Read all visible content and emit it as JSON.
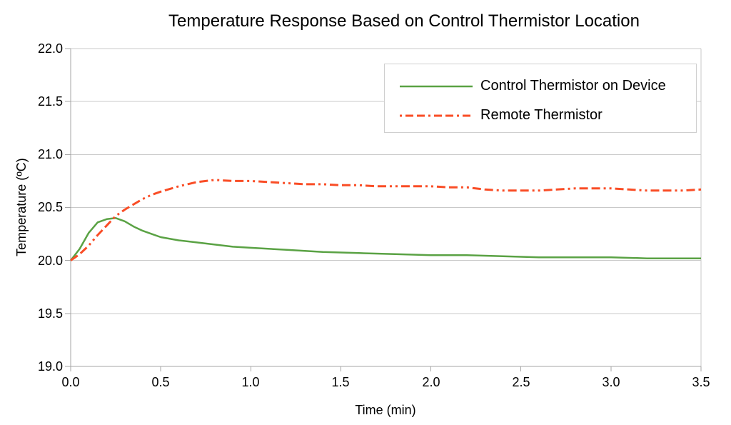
{
  "chart_data": {
    "type": "line",
    "title": "Temperature Response Based on Control Thermistor Location",
    "xlabel": "Time (min)",
    "ylabel": "Temperature (ºC)",
    "xlim": [
      0,
      3.5
    ],
    "ylim": [
      19,
      22
    ],
    "xticks": [
      0,
      0.5,
      1.0,
      1.5,
      2.0,
      2.5,
      3.0,
      3.5
    ],
    "yticks": [
      22.0,
      21.5,
      21.0,
      20.5,
      20.0,
      19.5,
      19.0
    ],
    "xtick_labels": [
      "0.0",
      "0.5",
      "1.0",
      "1.5",
      "2.0",
      "2.5",
      "3.0",
      "3.5"
    ],
    "ytick_labels": [
      "22.0",
      "21.5",
      "21.0",
      "20.5",
      "20.0",
      "19.5",
      "19.0"
    ],
    "grid": "horizontal",
    "grid_color": "#c9c9c9",
    "axis_color": "#a6a6a6",
    "legend_position": "top-right-inside",
    "series": [
      {
        "name": "Control Thermistor on Device",
        "color": "#5aa244",
        "style": "solid",
        "points": [
          [
            0.0,
            20.0
          ],
          [
            0.05,
            20.11
          ],
          [
            0.1,
            20.26
          ],
          [
            0.15,
            20.36
          ],
          [
            0.2,
            20.39
          ],
          [
            0.25,
            20.4
          ],
          [
            0.3,
            20.37
          ],
          [
            0.35,
            20.32
          ],
          [
            0.4,
            20.28
          ],
          [
            0.45,
            20.25
          ],
          [
            0.5,
            20.22
          ],
          [
            0.6,
            20.19
          ],
          [
            0.7,
            20.17
          ],
          [
            0.8,
            20.15
          ],
          [
            0.9,
            20.13
          ],
          [
            1.0,
            20.12
          ],
          [
            1.2,
            20.1
          ],
          [
            1.4,
            20.08
          ],
          [
            1.6,
            20.07
          ],
          [
            1.8,
            20.06
          ],
          [
            2.0,
            20.05
          ],
          [
            2.2,
            20.05
          ],
          [
            2.4,
            20.04
          ],
          [
            2.6,
            20.03
          ],
          [
            2.8,
            20.03
          ],
          [
            3.0,
            20.03
          ],
          [
            3.2,
            20.02
          ],
          [
            3.4,
            20.02
          ],
          [
            3.5,
            20.02
          ]
        ]
      },
      {
        "name": "Remote Thermistor",
        "color": "#f94d26",
        "style": "dash-dash-dot-dot",
        "points": [
          [
            0.0,
            20.0
          ],
          [
            0.05,
            20.06
          ],
          [
            0.1,
            20.14
          ],
          [
            0.15,
            20.24
          ],
          [
            0.2,
            20.33
          ],
          [
            0.25,
            20.42
          ],
          [
            0.3,
            20.48
          ],
          [
            0.35,
            20.53
          ],
          [
            0.4,
            20.58
          ],
          [
            0.45,
            20.62
          ],
          [
            0.5,
            20.65
          ],
          [
            0.6,
            20.7
          ],
          [
            0.7,
            20.74
          ],
          [
            0.8,
            20.76
          ],
          [
            0.9,
            20.75
          ],
          [
            1.0,
            20.75
          ],
          [
            1.1,
            20.74
          ],
          [
            1.2,
            20.73
          ],
          [
            1.3,
            20.72
          ],
          [
            1.4,
            20.72
          ],
          [
            1.5,
            20.71
          ],
          [
            1.6,
            20.71
          ],
          [
            1.7,
            20.7
          ],
          [
            1.8,
            20.7
          ],
          [
            1.9,
            20.7
          ],
          [
            2.0,
            20.7
          ],
          [
            2.1,
            20.69
          ],
          [
            2.2,
            20.69
          ],
          [
            2.3,
            20.67
          ],
          [
            2.4,
            20.66
          ],
          [
            2.5,
            20.66
          ],
          [
            2.6,
            20.66
          ],
          [
            2.7,
            20.67
          ],
          [
            2.8,
            20.68
          ],
          [
            2.9,
            20.68
          ],
          [
            3.0,
            20.68
          ],
          [
            3.1,
            20.67
          ],
          [
            3.2,
            20.66
          ],
          [
            3.3,
            20.66
          ],
          [
            3.4,
            20.66
          ],
          [
            3.5,
            20.67
          ]
        ]
      }
    ]
  }
}
